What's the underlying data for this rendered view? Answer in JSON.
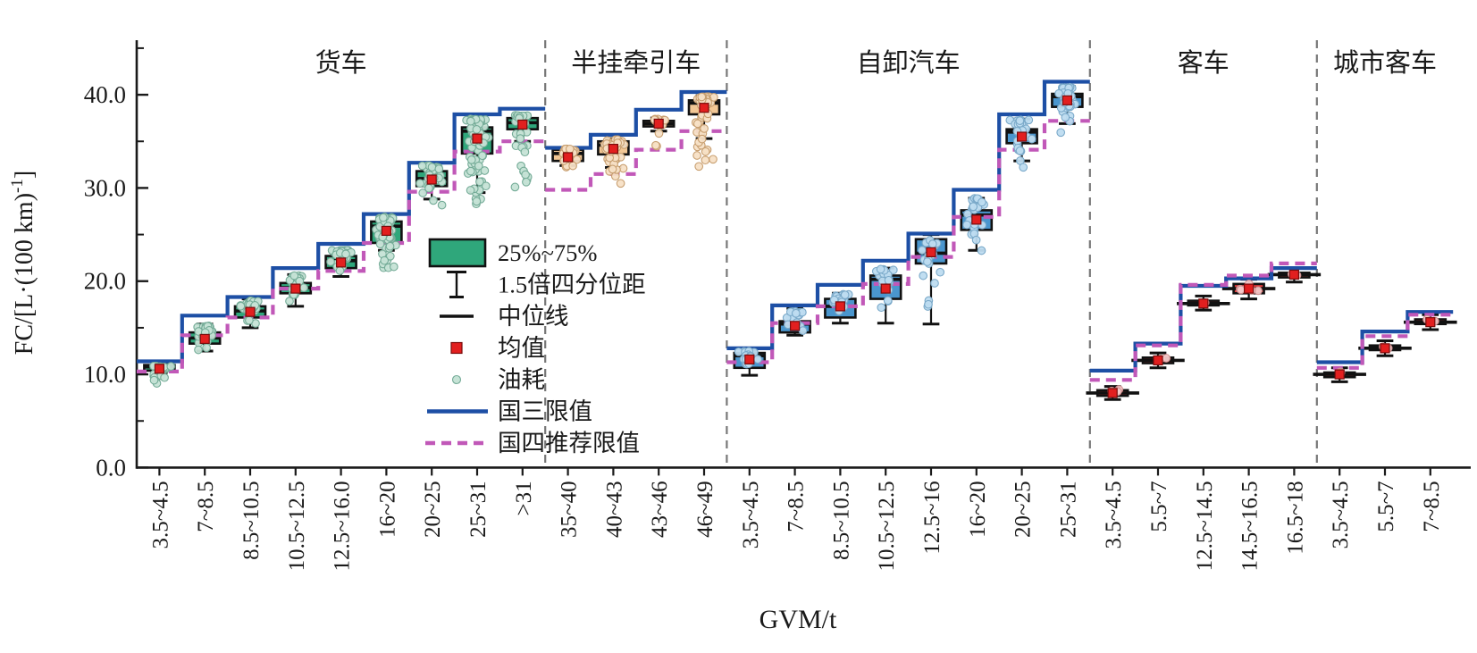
{
  "chart_data": {
    "type": "box",
    "title": "",
    "x_axis": {
      "label": "GVM/t"
    },
    "y_axis": {
      "label": "FC/[L·(100 km)⁻¹]",
      "label_main": "FC/[L·(100 km)",
      "label_sup": "-1",
      "label_close": "]",
      "ticks": [
        {
          "value": 0,
          "label": "0.0"
        },
        {
          "value": 10,
          "label": "10.0"
        },
        {
          "value": 20,
          "label": "20.0"
        },
        {
          "value": 30,
          "label": "30.0"
        },
        {
          "value": 40,
          "label": "40.0"
        }
      ],
      "minor_ticks": [
        5,
        15,
        25,
        35,
        45
      ],
      "range": [
        0,
        45.8
      ],
      "grid": false
    },
    "legend": {
      "position": "inside-left-middle",
      "items": [
        {
          "key": "iqr-box",
          "label": "25%~75%"
        },
        {
          "key": "whisker",
          "label": "1.5倍四分位距"
        },
        {
          "key": "median-line",
          "label": "中位线"
        },
        {
          "key": "mean-marker",
          "label": "均值"
        },
        {
          "key": "fuel-dot",
          "label": "油耗"
        },
        {
          "key": "gb3-limit",
          "label": "国三限值"
        },
        {
          "key": "gb4-limit",
          "label": "国四推荐限值"
        }
      ]
    },
    "colors": {
      "gb3_line": "#1d4fa5",
      "gb4_line": "#c158b8",
      "separator": "#777777",
      "axis": "#1a1a1a",
      "mean_fill": "#e21f1f",
      "mean_edge": "#7a0c0c"
    },
    "groups": [
      {
        "id": "trucks",
        "name": "货车",
        "box_fill": "#2fa77b",
        "dot_fill": "#c6e3d6",
        "dot_edge": "#74ab97",
        "wide_median": false,
        "categories": [
          {
            "label": "3.5~4.5",
            "q1": 10.4,
            "median": 10.8,
            "q3": 11.0,
            "mean": 10.6,
            "whisker_low": 10.2,
            "whisker_high": 11.2,
            "gb3_limit": 11.4,
            "gb4_limit": 10.3,
            "points": {
              "n": 28,
              "min": 8.7,
              "max": 10.9
            }
          },
          {
            "label": "7~8.5",
            "q1": 13.3,
            "median": 13.9,
            "q3": 14.5,
            "mean": 13.8,
            "whisker_low": 12.5,
            "whisker_high": 15.4,
            "gb3_limit": 16.3,
            "gb4_limit": 14.2,
            "points": {
              "n": 30,
              "min": 12.2,
              "max": 15.2
            }
          },
          {
            "label": "8.5~10.5",
            "q1": 16.1,
            "median": 16.8,
            "q3": 17.3,
            "mean": 16.7,
            "whisker_low": 15.0,
            "whisker_high": 18.1,
            "gb3_limit": 18.3,
            "gb4_limit": 16.1,
            "points": {
              "n": 30,
              "min": 14.8,
              "max": 17.9
            }
          },
          {
            "label": "10.5~12.5",
            "q1": 18.7,
            "median": 19.3,
            "q3": 19.8,
            "mean": 19.2,
            "whisker_low": 17.3,
            "whisker_high": 20.7,
            "gb3_limit": 21.4,
            "gb4_limit": 19.2,
            "points": {
              "n": 32,
              "min": 17.2,
              "max": 20.6
            }
          },
          {
            "label": "12.5~16.0",
            "q1": 21.4,
            "median": 22.2,
            "q3": 22.7,
            "mean": 22.0,
            "whisker_low": 20.5,
            "whisker_high": 23.4,
            "gb3_limit": 24.0,
            "gb4_limit": 21.1,
            "points": {
              "n": 36,
              "min": 19.9,
              "max": 23.3
            }
          },
          {
            "label": "16~20",
            "q1": 24.1,
            "median": 25.9,
            "q3": 26.4,
            "mean": 25.4,
            "whisker_low": 23.3,
            "whisker_high": 26.8,
            "gb3_limit": 27.2,
            "gb4_limit": 24.1,
            "points": {
              "n": 60,
              "min": 20.9,
              "max": 26.9
            }
          },
          {
            "label": "20~25",
            "q1": 30.2,
            "median": 31.0,
            "q3": 31.8,
            "mean": 30.9,
            "whisker_low": 28.8,
            "whisker_high": 32.5,
            "gb3_limit": 32.7,
            "gb4_limit": 29.6,
            "points": {
              "n": 46,
              "min": 26.9,
              "max": 32.4
            }
          },
          {
            "label": "25~31",
            "q1": 33.7,
            "median": 36.1,
            "q3": 36.5,
            "mean": 35.3,
            "whisker_low": 29.5,
            "whisker_high": 37.5,
            "gb3_limit": 37.9,
            "gb4_limit": 33.9,
            "points": {
              "n": 75,
              "min": 25.9,
              "max": 37.4
            }
          },
          {
            "label": ">31",
            "q1": 36.3,
            "median": 37.0,
            "q3": 37.5,
            "mean": 36.8,
            "whisker_low": 35.0,
            "whisker_high": 37.9,
            "gb3_limit": 38.5,
            "gb4_limit": 35.0,
            "points": {
              "n": 40,
              "min": 29.0,
              "max": 37.8
            }
          }
        ]
      },
      {
        "id": "semi-trailer-tractors",
        "name": "半挂牵引车",
        "box_fill": "#f2c795",
        "dot_fill": "#f7e0c6",
        "dot_edge": "#c79e6f",
        "wide_median": false,
        "categories": [
          {
            "label": "35~40",
            "q1": 32.9,
            "median": 33.7,
            "q3": 34.1,
            "mean": 33.3,
            "whisker_low": 32.4,
            "whisker_high": 34.3,
            "gb3_limit": 34.3,
            "gb4_limit": 29.8,
            "points": {
              "n": 24,
              "min": 31.6,
              "max": 34.2
            }
          },
          {
            "label": "40~43",
            "q1": 33.6,
            "median": 34.6,
            "q3": 35.0,
            "mean": 34.2,
            "whisker_low": 32.2,
            "whisker_high": 35.3,
            "gb3_limit": 35.7,
            "gb4_limit": 31.5,
            "points": {
              "n": 46,
              "min": 28.8,
              "max": 35.2
            }
          },
          {
            "label": "43~46",
            "q1": 36.6,
            "median": 36.9,
            "q3": 37.2,
            "mean": 36.9,
            "whisker_low": 36.1,
            "whisker_high": 37.5,
            "gb3_limit": 38.4,
            "gb4_limit": 34.1,
            "points": {
              "n": 12,
              "min": 33.6,
              "max": 37.4
            }
          },
          {
            "label": "46~49",
            "q1": 37.9,
            "median": 39.1,
            "q3": 39.4,
            "mean": 38.6,
            "whisker_low": 35.3,
            "whisker_high": 39.9,
            "gb3_limit": 40.3,
            "gb4_limit": 36.1,
            "points": {
              "n": 52,
              "min": 31.0,
              "max": 39.8
            }
          }
        ]
      },
      {
        "id": "dump-trucks",
        "name": "自卸汽车",
        "box_fill": "#4a96ce",
        "dot_fill": "#bedcf0",
        "dot_edge": "#7aa9c9",
        "wide_median": false,
        "categories": [
          {
            "label": "3.5~4.5",
            "q1": 10.7,
            "median": 12.0,
            "q3": 12.3,
            "mean": 11.6,
            "whisker_low": 9.9,
            "whisker_high": 12.6,
            "gb3_limit": 12.8,
            "gb4_limit": 11.3,
            "points": {
              "n": 22,
              "min": 9.9,
              "max": 12.5
            }
          },
          {
            "label": "7~8.5",
            "q1": 14.5,
            "median": 15.4,
            "q3": 15.7,
            "mean": 15.2,
            "whisker_low": 14.2,
            "whisker_high": 17.1,
            "gb3_limit": 17.4,
            "gb4_limit": 15.5,
            "points": {
              "n": 18,
              "min": 14.2,
              "max": 16.8
            }
          },
          {
            "label": "8.5~10.5",
            "q1": 16.1,
            "median": 17.3,
            "q3": 18.1,
            "mean": 17.3,
            "whisker_low": 15.5,
            "whisker_high": 18.7,
            "gb3_limit": 19.6,
            "gb4_limit": 17.3,
            "points": {
              "n": 22,
              "min": 15.6,
              "max": 18.6
            }
          },
          {
            "label": "10.5~12.5",
            "q1": 18.1,
            "median": 20.2,
            "q3": 20.6,
            "mean": 19.2,
            "whisker_low": 15.5,
            "whisker_high": 21.4,
            "gb3_limit": 22.2,
            "gb4_limit": 19.7,
            "points": {
              "n": 20,
              "min": 15.8,
              "max": 21.3
            }
          },
          {
            "label": "12.5~16",
            "q1": 21.9,
            "median": 23.0,
            "q3": 24.5,
            "mean": 23.1,
            "whisker_low": 15.4,
            "whisker_high": 25.0,
            "gb3_limit": 25.1,
            "gb4_limit": 22.6,
            "points": {
              "n": 20,
              "min": 15.2,
              "max": 24.8
            }
          },
          {
            "label": "16~20",
            "q1": 25.5,
            "median": 27.1,
            "q3": 27.6,
            "mean": 26.6,
            "whisker_low": 23.3,
            "whisker_high": 28.9,
            "gb3_limit": 29.8,
            "gb4_limit": 26.9,
            "points": {
              "n": 28,
              "min": 22.5,
              "max": 28.9
            }
          },
          {
            "label": "20~25",
            "q1": 34.8,
            "median": 36.0,
            "q3": 36.3,
            "mean": 35.5,
            "whisker_low": 32.9,
            "whisker_high": 37.4,
            "gb3_limit": 37.9,
            "gb4_limit": 34.1,
            "points": {
              "n": 30,
              "min": 31.5,
              "max": 37.3
            }
          },
          {
            "label": "25~31",
            "q1": 38.7,
            "median": 39.8,
            "q3": 40.1,
            "mean": 39.4,
            "whisker_low": 36.9,
            "whisker_high": 40.9,
            "gb3_limit": 41.4,
            "gb4_limit": 37.2,
            "points": {
              "n": 36,
              "min": 35.0,
              "max": 40.8
            }
          }
        ]
      },
      {
        "id": "coaches",
        "name": "客车",
        "box_fill": "#e03b3b",
        "dot_fill": "#f6caca",
        "dot_edge": "#d08f8f",
        "wide_median": true,
        "categories": [
          {
            "label": "3.5~4.5",
            "q1": 7.7,
            "median": 8.0,
            "q3": 8.3,
            "mean": 8.0,
            "whisker_low": 7.3,
            "whisker_high": 8.7,
            "gb3_limit": 10.4,
            "gb4_limit": 9.4,
            "points": {
              "n": 3,
              "min": 7.8,
              "max": 8.4
            }
          },
          {
            "label": "5.5~7",
            "q1": 11.2,
            "median": 11.5,
            "q3": 11.8,
            "mean": 11.5,
            "whisker_low": 10.7,
            "whisker_high": 12.3,
            "gb3_limit": 13.3,
            "gb4_limit": 13.1,
            "points": {
              "n": 2,
              "min": 11.3,
              "max": 11.8
            }
          },
          {
            "label": "12.5~14.5",
            "q1": 17.4,
            "median": 17.6,
            "q3": 17.9,
            "mean": 17.6,
            "whisker_low": 16.9,
            "whisker_high": 18.4,
            "gb3_limit": 19.5,
            "gb4_limit": 19.6,
            "points": {
              "n": 1,
              "min": 17.6,
              "max": 17.7
            }
          },
          {
            "label": "14.5~16.5",
            "q1": 18.7,
            "median": 19.2,
            "q3": 19.7,
            "mean": 19.2,
            "whisker_low": 18.1,
            "whisker_high": 20.2,
            "gb3_limit": 20.3,
            "gb4_limit": 20.6,
            "points": {
              "n": 6,
              "min": 17.1,
              "max": 19.9
            }
          },
          {
            "label": "16.5~18",
            "q1": 20.4,
            "median": 20.7,
            "q3": 20.9,
            "mean": 20.7,
            "whisker_low": 19.9,
            "whisker_high": 21.4,
            "gb3_limit": 21.4,
            "gb4_limit": 21.9,
            "points": {
              "n": 2,
              "min": 20.4,
              "max": 21.0
            }
          }
        ]
      },
      {
        "id": "city-buses",
        "name": "城市客车",
        "box_fill": "#e03b3b",
        "dot_fill": "#f6caca",
        "dot_edge": "#d08f8f",
        "wide_median": true,
        "categories": [
          {
            "label": "3.5~4.5",
            "q1": 9.7,
            "median": 10.0,
            "q3": 10.2,
            "mean": 10.0,
            "whisker_low": 9.2,
            "whisker_high": 10.7,
            "gb3_limit": 11.3,
            "gb4_limit": 10.7,
            "points": {
              "n": 2,
              "min": 9.8,
              "max": 10.3
            }
          },
          {
            "label": "5.5~7",
            "q1": 12.6,
            "median": 12.8,
            "q3": 13.1,
            "mean": 12.8,
            "whisker_low": 12.0,
            "whisker_high": 13.6,
            "gb3_limit": 14.6,
            "gb4_limit": 14.1,
            "points": {
              "n": 2,
              "min": 12.6,
              "max": 13.1
            }
          },
          {
            "label": "7~8.5",
            "q1": 15.4,
            "median": 15.6,
            "q3": 15.9,
            "mean": 15.6,
            "whisker_low": 14.8,
            "whisker_high": 16.4,
            "gb3_limit": 16.7,
            "gb4_limit": 16.4,
            "points": {
              "n": 2,
              "min": 15.4,
              "max": 15.9
            }
          }
        ]
      }
    ]
  }
}
